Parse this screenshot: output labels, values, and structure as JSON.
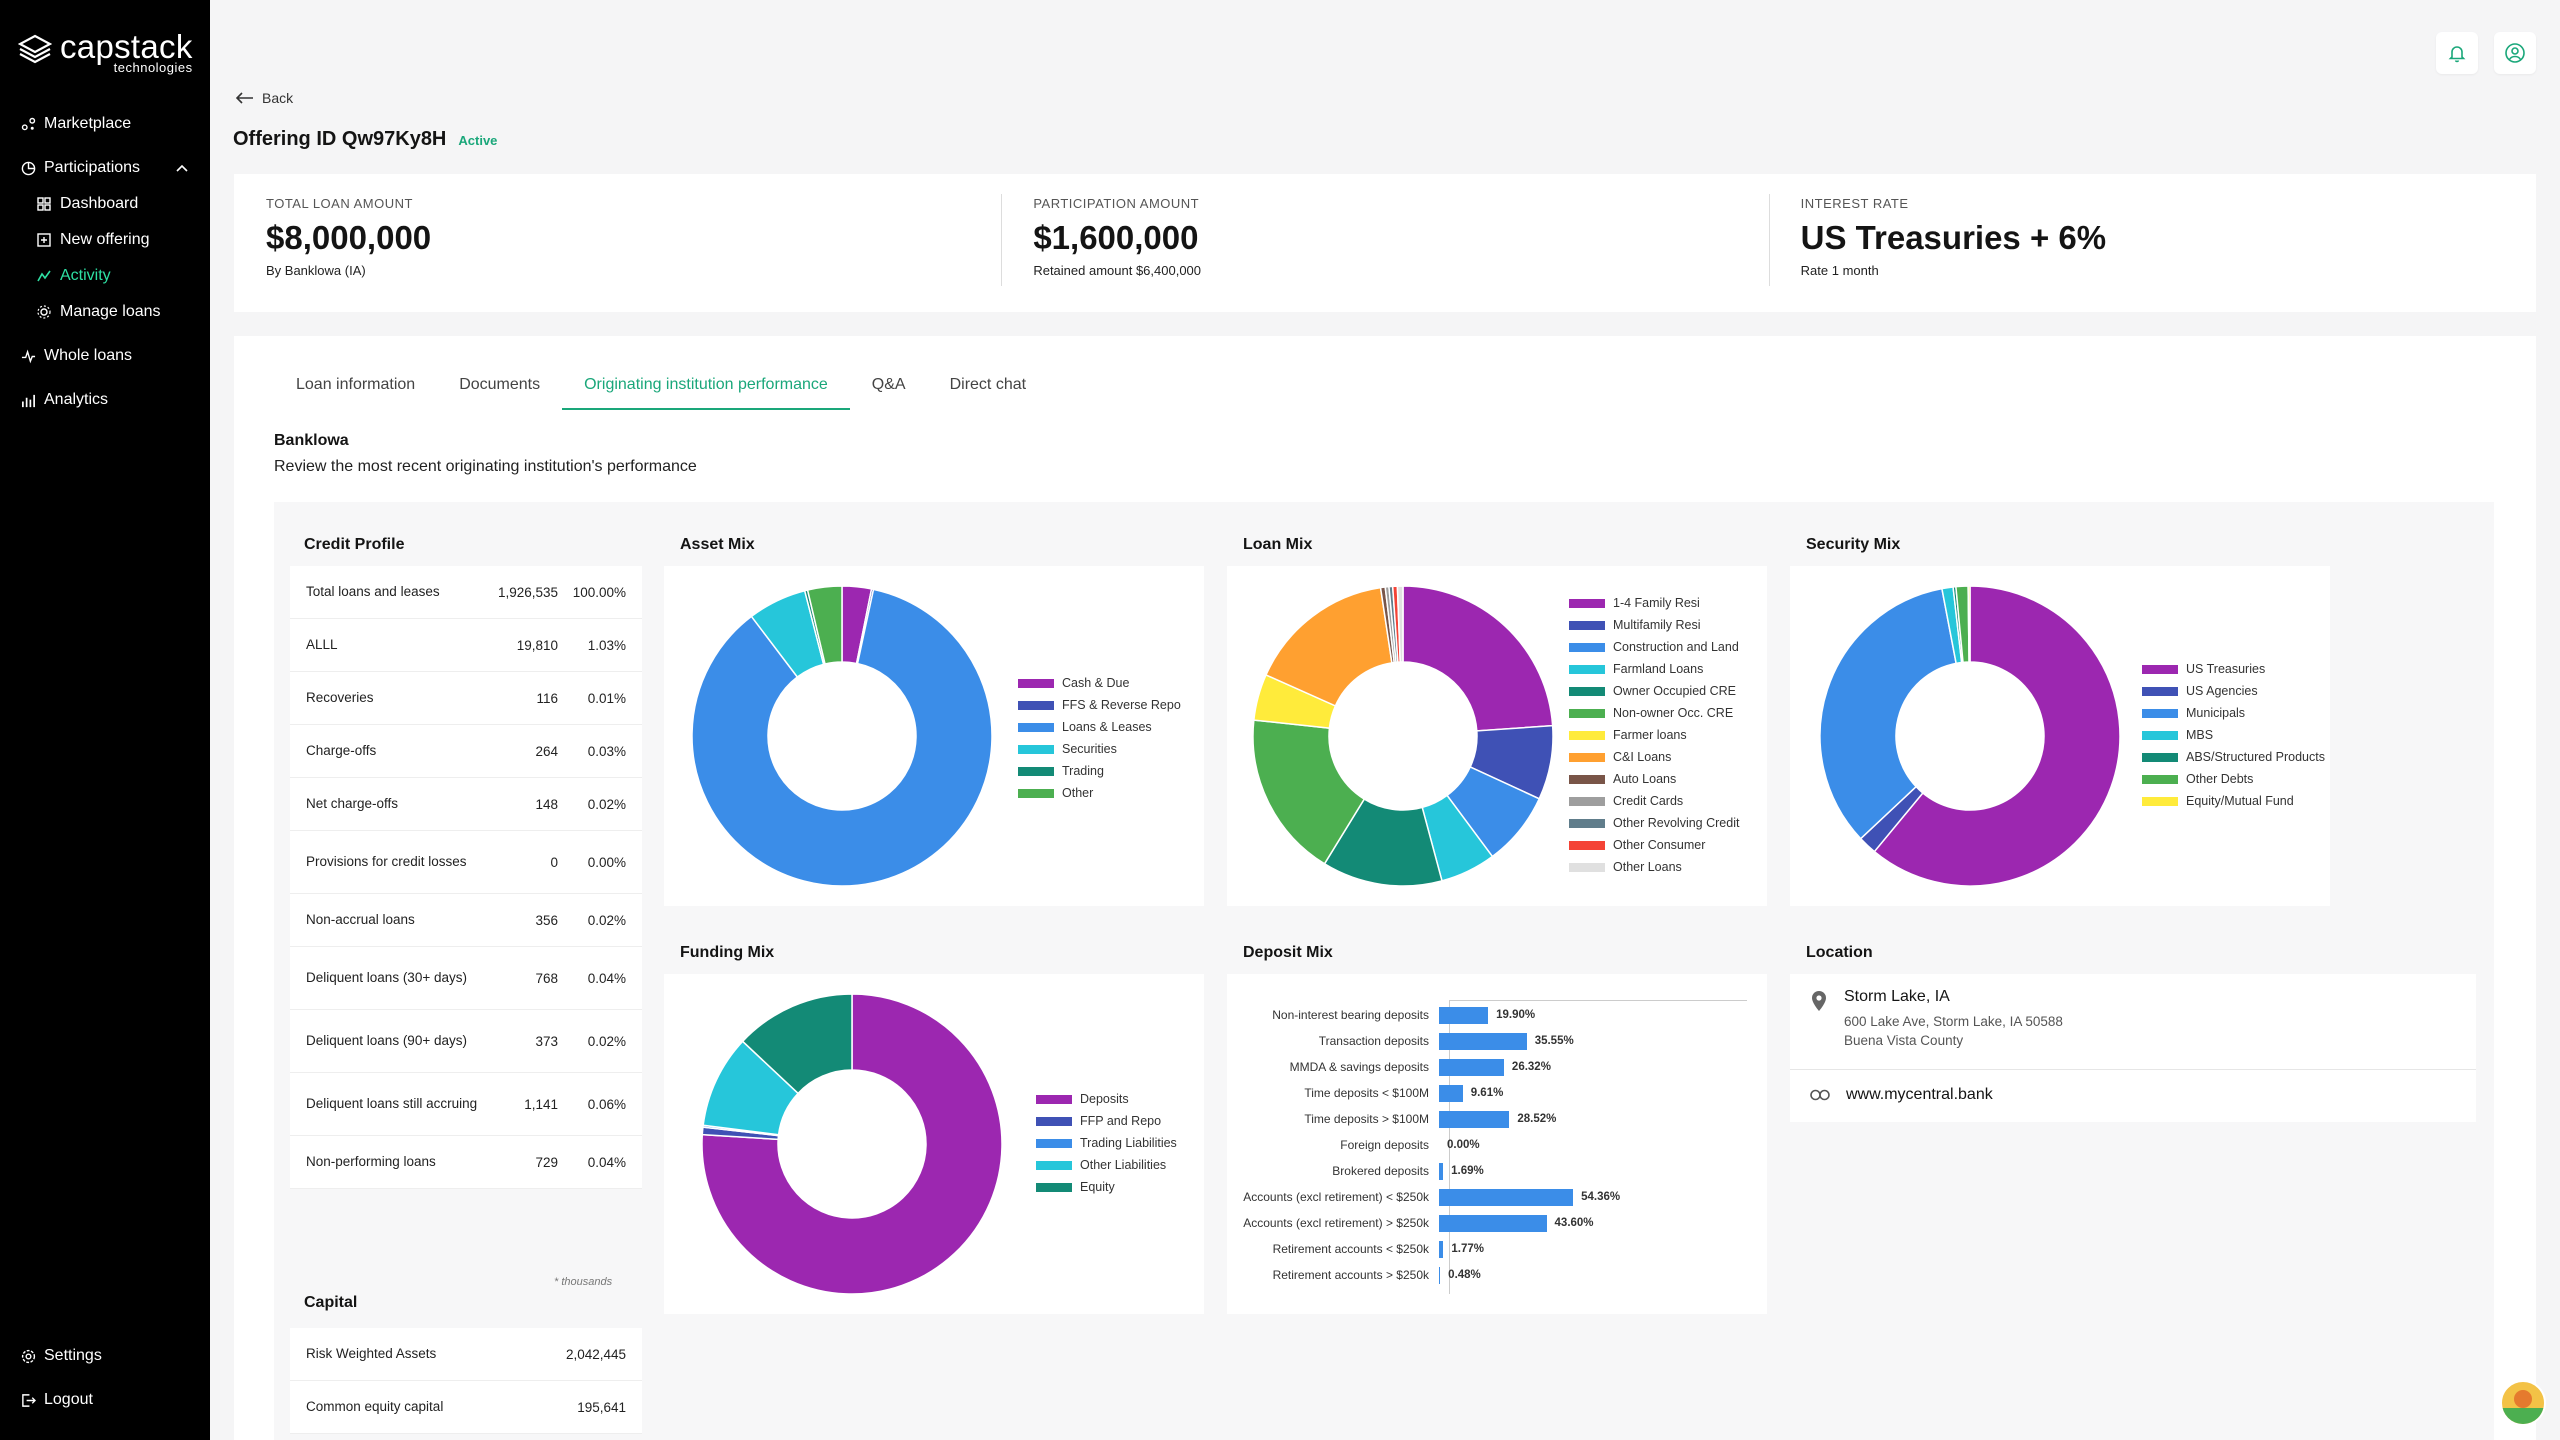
{
  "brand": {
    "name": "capstack",
    "sub": "technologies"
  },
  "nav": {
    "marketplace": "Marketplace",
    "participations": "Participations",
    "dashboard": "Dashboard",
    "new_offering": "New offering",
    "activity": "Activity",
    "manage_loans": "Manage loans",
    "whole_loans": "Whole loans",
    "analytics": "Analytics",
    "settings": "Settings",
    "logout": "Logout"
  },
  "header": {
    "back": "Back",
    "offering_id": "Offering ID Qw97Ky8H",
    "status": "Active"
  },
  "summary": {
    "total_label": "TOTAL LOAN AMOUNT",
    "total_value": "$8,000,000",
    "total_sub": "By Banklowa (IA)",
    "part_label": "PARTICIPATION AMOUNT",
    "part_value": "$1,600,000",
    "part_sub": "Retained amount $6,400,000",
    "rate_label": "INTEREST RATE",
    "rate_value": "US Treasuries + 6%",
    "rate_sub": "Rate 1 month"
  },
  "tabs": [
    "Loan information",
    "Documents",
    "Originating institution performance",
    "Q&A",
    "Direct chat"
  ],
  "bank": {
    "name": "Banklowa",
    "desc": "Review the most recent originating institution's performance"
  },
  "credit_profile": {
    "title": "Credit Profile",
    "rows": [
      {
        "label": "Total loans and leases",
        "value": "1,926,535",
        "pct": "100.00%"
      },
      {
        "label": "ALLL",
        "value": "19,810",
        "pct": "1.03%"
      },
      {
        "label": "Recoveries",
        "value": "116",
        "pct": "0.01%"
      },
      {
        "label": "Charge-offs",
        "value": "264",
        "pct": "0.03%"
      },
      {
        "label": "Net charge-offs",
        "value": "148",
        "pct": "0.02%"
      },
      {
        "label": "Provisions for credit losses",
        "value": "0",
        "pct": "0.00%"
      },
      {
        "label": "Non-accrual loans",
        "value": "356",
        "pct": "0.02%"
      },
      {
        "label": "Deliquent loans (30+ days)",
        "value": "768",
        "pct": "0.04%"
      },
      {
        "label": "Deliquent loans (90+ days)",
        "value": "373",
        "pct": "0.02%"
      },
      {
        "label": "Deliquent loans still accruing",
        "value": "1,141",
        "pct": "0.06%"
      },
      {
        "label": "Non-performing loans",
        "value": "729",
        "pct": "0.04%"
      }
    ],
    "footnote": "* thousands"
  },
  "capital": {
    "title": "Capital",
    "rows": [
      {
        "label": "Risk Weighted Assets",
        "value": "2,042,445"
      },
      {
        "label": "Common equity capital",
        "value": "195,641"
      }
    ]
  },
  "colors": {
    "purple": "#9c27b0",
    "indigo": "#3f51b5",
    "blue": "#3b8de8",
    "cyan": "#26c6da",
    "teal": "#138a76",
    "green": "#4caf50",
    "yellow": "#ffeb3b",
    "orange": "#ffa030",
    "brown": "#795548",
    "grey": "#9e9e9e",
    "slate": "#607d8b",
    "red": "#f44336",
    "lightgrey": "#e0e0e0",
    "accent": "#1aa77a"
  },
  "chart_data": [
    {
      "type": "pie",
      "title": "Asset Mix",
      "categories": [
        "Cash & Due",
        "FFS & Reverse Repo",
        "Loans & Leases",
        "Securities",
        "Trading",
        "Other"
      ],
      "values": [
        3,
        0.2,
        82,
        6,
        0.3,
        3.5
      ]
    },
    {
      "type": "pie",
      "title": "Loan Mix",
      "categories": [
        "1-4 Family Resi",
        "Multifamily Resi",
        "Construction and Land",
        "Farmland Loans",
        "Owner Occupied CRE",
        "Non-owner Occ. CRE",
        "Farmer loans",
        "C&I Loans",
        "Auto Loans",
        "Credit Cards",
        "Other Revolving Credit",
        "Other Consumer",
        "Other Loans"
      ],
      "values": [
        24,
        8,
        8,
        6,
        13,
        18,
        5,
        16,
        0.5,
        0.4,
        0.4,
        0.5,
        0.6
      ]
    },
    {
      "type": "pie",
      "title": "Security Mix",
      "categories": [
        "US Treasuries",
        "US Agencies",
        "Municipals",
        "MBS",
        "ABS/Structured Products",
        "Other Debts",
        "Equity/Mutual Fund"
      ],
      "values": [
        61,
        2,
        34,
        1.2,
        0.3,
        1.3,
        0.2
      ]
    },
    {
      "type": "pie",
      "title": "Funding Mix",
      "categories": [
        "Deposits",
        "FFP and Repo",
        "Trading Liabilities",
        "Other Liabilities",
        "Equity"
      ],
      "values": [
        76,
        0.8,
        0.2,
        10,
        13
      ]
    },
    {
      "type": "bar",
      "title": "Deposit Mix",
      "categories": [
        "Non-interest bearing deposits",
        "Transaction deposits",
        "MMDA & savings deposits",
        "Time deposits < $100M",
        "Time deposits > $100M",
        "Foreign deposits",
        "Brokered deposits",
        "Accounts (excl retirement) < $250k",
        "Accounts (excl retirement) > $250k",
        "Retirement accounts < $250k",
        "Retirement accounts > $250k"
      ],
      "values": [
        19.9,
        35.55,
        26.32,
        9.61,
        28.52,
        0.0,
        1.69,
        54.36,
        43.6,
        1.77,
        0.48
      ],
      "labels": [
        "19.90%",
        "35.55%",
        "26.32%",
        "9.61%",
        "28.52%",
        "0.00%",
        "1.69%",
        "54.36%",
        "43.60%",
        "1.77%",
        "0.48%"
      ],
      "xlim": [
        0,
        120
      ]
    }
  ],
  "location": {
    "title": "Location",
    "city": "Storm Lake, IA",
    "address": "600 Lake Ave, Storm Lake, IA 50588",
    "county": "Buena Vista County",
    "website": "www.mycentral.bank"
  }
}
